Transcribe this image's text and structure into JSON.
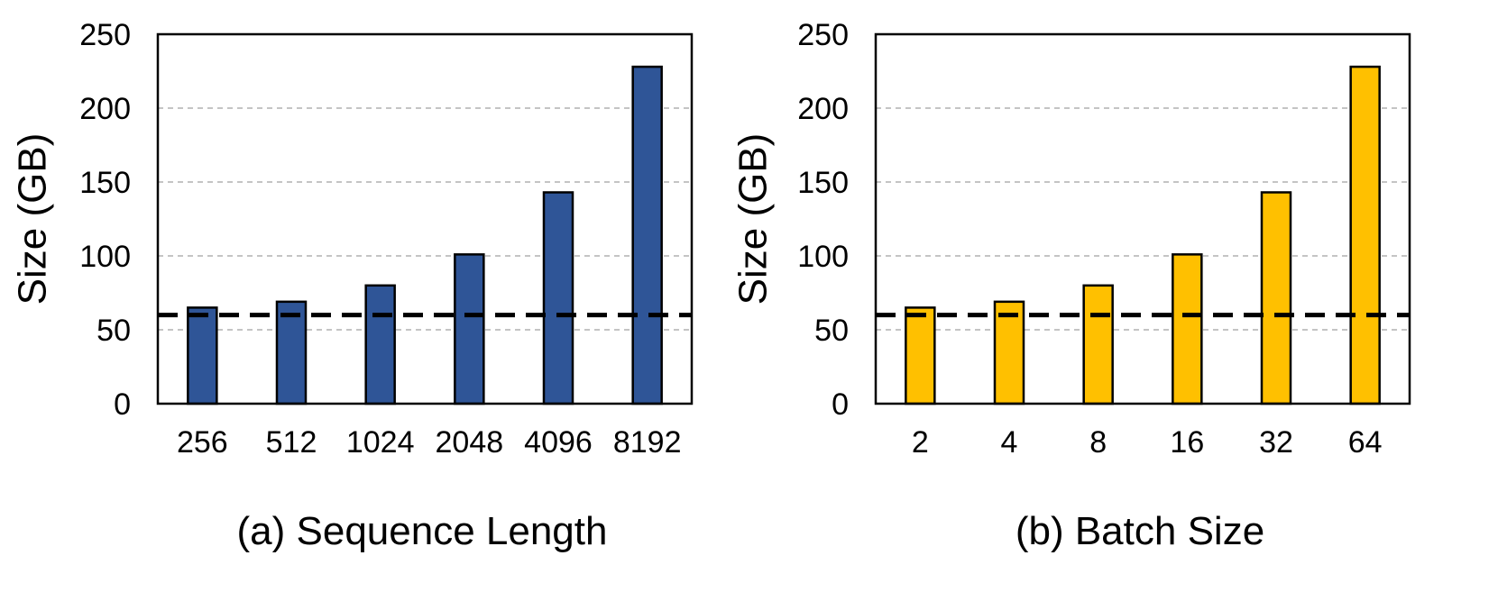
{
  "chart_data": [
    {
      "type": "bar",
      "categories": [
        "256",
        "512",
        "1024",
        "2048",
        "4096",
        "8192"
      ],
      "values": [
        65,
        69,
        80,
        101,
        143,
        228
      ],
      "title": "(a) Sequence Length",
      "ylabel": "Size (GB)",
      "xlabel": "",
      "ylim": [
        0,
        250
      ],
      "yticks": [
        "0",
        "50",
        "100",
        "150",
        "200",
        "250"
      ],
      "grid": true,
      "reference_line": 60,
      "color": "#2F5597"
    },
    {
      "type": "bar",
      "categories": [
        "2",
        "4",
        "8",
        "16",
        "32",
        "64"
      ],
      "values": [
        65,
        69,
        80,
        101,
        143,
        228
      ],
      "title": "(b) Batch Size",
      "ylabel": "Size (GB)",
      "xlabel": "",
      "ylim": [
        0,
        250
      ],
      "yticks": [
        "0",
        "50",
        "100",
        "150",
        "200",
        "250"
      ],
      "grid": true,
      "reference_line": 60,
      "color": "#FFC000"
    }
  ]
}
